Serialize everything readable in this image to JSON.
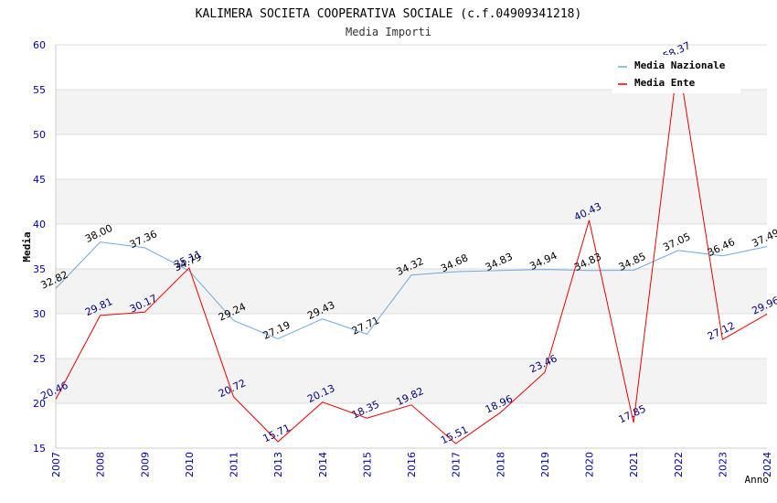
{
  "chart_data": {
    "type": "line",
    "title": "KALIMERA SOCIETA COOPERATIVA SOCIALE (c.f.04909341218)",
    "subtitle": "Media Importi",
    "xlabel": "Anno",
    "ylabel": "Media",
    "ylim": [
      15,
      60
    ],
    "yticks": [
      "15",
      "20",
      "25",
      "30",
      "35",
      "40",
      "45",
      "50",
      "55",
      "60"
    ],
    "categories": [
      "2007",
      "2008",
      "2009",
      "2010",
      "2011",
      "2013",
      "2014",
      "2015",
      "2016",
      "2017",
      "2018",
      "2019",
      "2020",
      "2021",
      "2022",
      "2023",
      "2024"
    ],
    "grid": "horizontal bands",
    "legend_position": "top-right",
    "series": [
      {
        "name": "Media Nazionale",
        "color": "#6fa8dc",
        "label_color": "#000000",
        "values": [
          32.82,
          38.0,
          37.36,
          34.79,
          29.24,
          27.19,
          29.43,
          27.71,
          34.32,
          34.68,
          34.83,
          34.94,
          34.83,
          34.85,
          37.05,
          36.46,
          37.49
        ],
        "labels": [
          "32.82",
          "38.00",
          "37.36",
          "34.79",
          "29.24",
          "27.19",
          "29.43",
          "27.71",
          "34.32",
          "34.68",
          "34.83",
          "34.94",
          "34.83",
          "34.85",
          "37.05",
          "36.46",
          "37.49"
        ]
      },
      {
        "name": "Media Ente",
        "color": "#ee0000",
        "label_color": "#000080",
        "values": [
          20.46,
          29.81,
          30.17,
          35.11,
          20.72,
          15.71,
          20.13,
          18.35,
          19.82,
          15.51,
          18.96,
          23.46,
          40.43,
          17.85,
          58.37,
          27.12,
          29.96
        ],
        "labels": [
          "20.46",
          "29.81",
          "30.17",
          "35.11",
          "20.72",
          "15.71",
          "20.13",
          "18.35",
          "19.82",
          "15.51",
          "18.96",
          "23.46",
          "40.43",
          "17.85",
          "58.37",
          "27.12",
          "29.96"
        ]
      }
    ],
    "colors": {
      "band": "#f3f3f3",
      "grid_line": "#dddddd",
      "axis_tick_text": "#0000aa",
      "axis_line": "#cccccc"
    }
  }
}
